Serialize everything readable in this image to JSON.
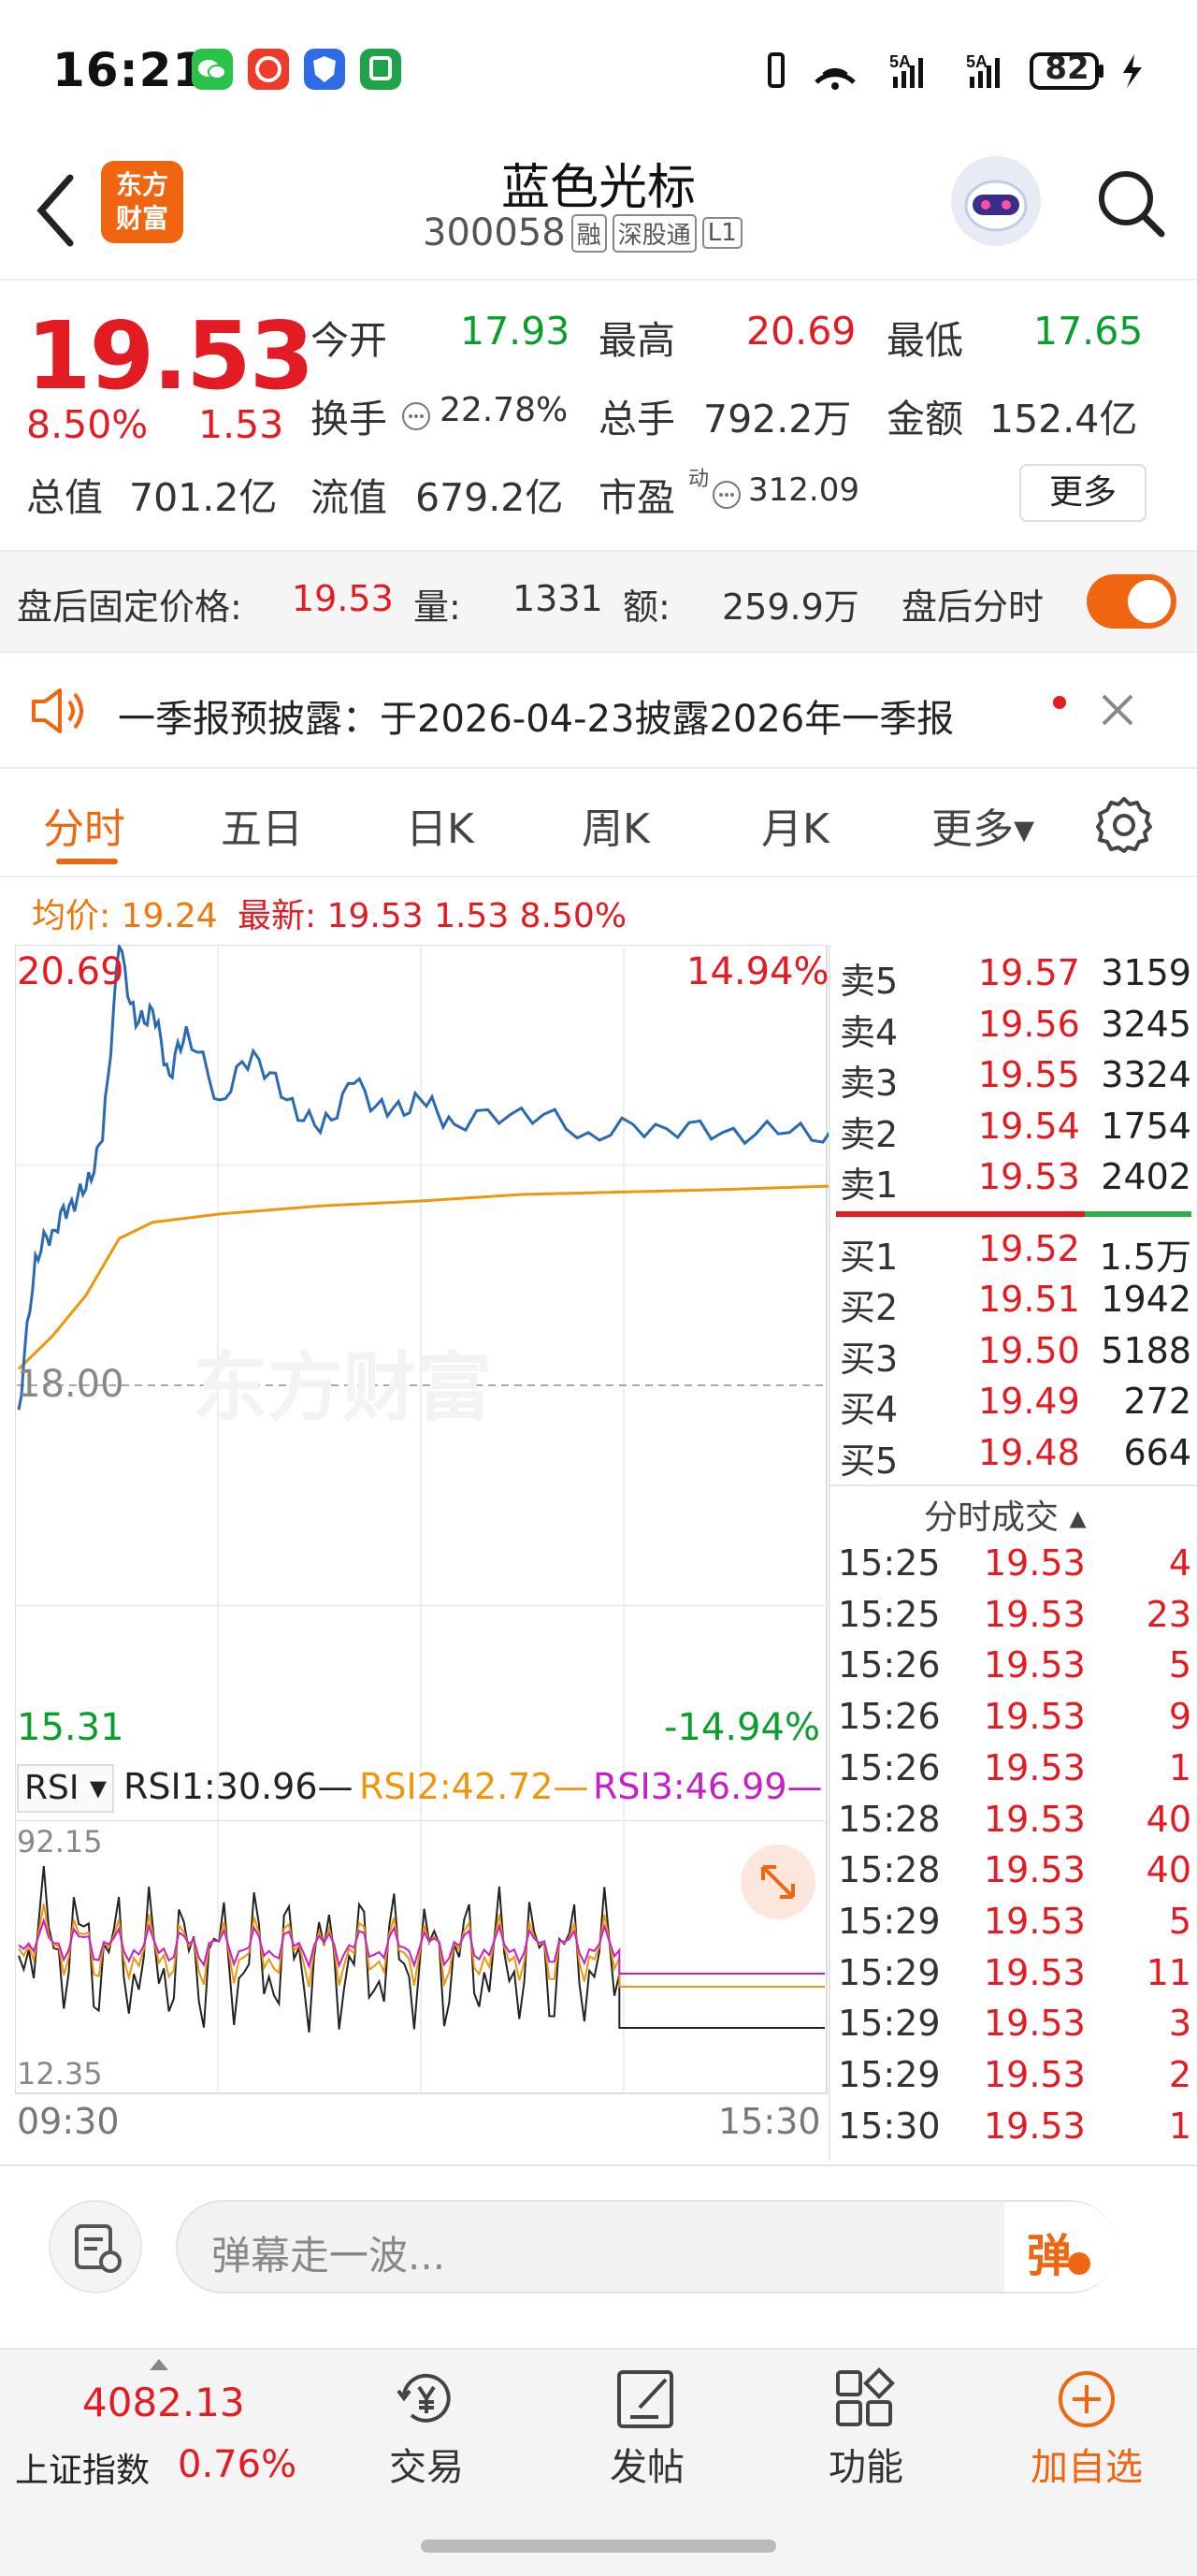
{
  "status_bar": {
    "time": "16:21",
    "battery": "82",
    "signal1": "5A",
    "signal2": "5A"
  },
  "header": {
    "stock_name": "蓝色光标",
    "stock_code": "300058",
    "tags": [
      "融",
      "深股通",
      "L1"
    ],
    "logo_text": "东方\n财富"
  },
  "quote": {
    "price": "19.53",
    "change_pct": "8.50%",
    "change": "1.53",
    "open_label": "今开",
    "open": "17.93",
    "high_label": "最高",
    "high": "20.69",
    "low_label": "最低",
    "low": "17.65",
    "turnover_label": "换手",
    "turnover": "22.78%",
    "volume_label": "总手",
    "volume": "792.2万",
    "amount_label": "金额",
    "amount": "152.4亿",
    "mcap_label": "总值",
    "mcap": "701.2亿",
    "float_label": "流值",
    "float": "679.2亿",
    "pe_label": "市盈",
    "pe_sup": "动",
    "pe": "312.09",
    "more_label": "更多"
  },
  "after_hours": {
    "price_label": "盘后固定价格:",
    "price": "19.53",
    "vol_label": "量:",
    "vol": "1331",
    "amt_label": "额:",
    "amt": "259.9万",
    "timeline_label": "盘后分时",
    "toggle_on": true
  },
  "notice": {
    "text": "一季报预披露：于2026-04-23披露2026年一季报"
  },
  "tabs": [
    {
      "label": "分时",
      "active": true
    },
    {
      "label": "五日"
    },
    {
      "label": "日K"
    },
    {
      "label": "周K"
    },
    {
      "label": "月K"
    },
    {
      "label": "更多▾"
    }
  ],
  "chart_header": {
    "avg_label": "均价: 19.24",
    "latest_label": "最新: 19.53 1.53 8.50%"
  },
  "chart_data": {
    "type": "line",
    "series": [
      {
        "name": "price",
        "color": "#2a6ab3",
        "x": [
          "09:30",
          "09:35",
          "09:40",
          "09:45",
          "09:50",
          "09:55",
          "10:00",
          "10:05",
          "10:10",
          "10:15",
          "10:20",
          "10:30",
          "10:40",
          "10:50",
          "11:00",
          "11:10",
          "11:20",
          "11:30",
          "13:10",
          "13:30",
          "13:50",
          "14:10",
          "14:30",
          "14:50",
          "15:10",
          "15:30"
        ],
        "values": [
          17.85,
          18.8,
          18.95,
          19.1,
          19.2,
          19.5,
          20.69,
          20.2,
          20.3,
          19.9,
          20.2,
          19.75,
          20.05,
          19.75,
          19.55,
          19.85,
          19.65,
          19.75,
          19.6,
          19.7,
          19.55,
          19.6,
          19.55,
          19.55,
          19.53,
          19.53
        ]
      },
      {
        "name": "avg",
        "color": "#f0960a",
        "x": [
          "09:30",
          "09:40",
          "09:50",
          "10:00",
          "10:10",
          "10:30",
          "11:00",
          "11:30",
          "13:30",
          "14:30",
          "15:30"
        ],
        "values": [
          18.1,
          18.3,
          18.55,
          18.9,
          19.0,
          19.05,
          19.1,
          19.13,
          19.17,
          19.2,
          19.24
        ]
      }
    ],
    "ylim": [
      15.31,
      20.69
    ],
    "pre_close": "18.00",
    "y_top_label": "20.69",
    "y_bottom_label": "15.31",
    "pct_top": "14.94%",
    "pct_bottom": "-14.94%",
    "x_labels": [
      "09:30",
      "15:30"
    ],
    "watermark": "东方财富"
  },
  "rsi": {
    "indicator": "RSI ▾",
    "rsi1": "RSI1:30.96—",
    "rsi2": "RSI2:42.72—",
    "rsi3": "RSI3:46.99—",
    "top": "92.15",
    "bottom": "12.35"
  },
  "order_book": {
    "asks": [
      {
        "label": "卖5",
        "price": "19.57",
        "vol": "3159"
      },
      {
        "label": "卖4",
        "price": "19.56",
        "vol": "3245"
      },
      {
        "label": "卖3",
        "price": "19.55",
        "vol": "3324"
      },
      {
        "label": "卖2",
        "price": "19.54",
        "vol": "1754"
      },
      {
        "label": "卖1",
        "price": "19.53",
        "vol": "2402"
      }
    ],
    "bids": [
      {
        "label": "买1",
        "price": "19.52",
        "vol": "1.5万"
      },
      {
        "label": "买2",
        "price": "19.51",
        "vol": "1942"
      },
      {
        "label": "买3",
        "price": "19.50",
        "vol": "5188"
      },
      {
        "label": "买4",
        "price": "19.49",
        "vol": "272"
      },
      {
        "label": "买5",
        "price": "19.48",
        "vol": "664"
      }
    ],
    "trades_title": "分时成交 ▴",
    "trades": [
      {
        "time": "15:25",
        "price": "19.53",
        "vol": "4"
      },
      {
        "time": "15:25",
        "price": "19.53",
        "vol": "23"
      },
      {
        "time": "15:26",
        "price": "19.53",
        "vol": "5"
      },
      {
        "time": "15:26",
        "price": "19.53",
        "vol": "9"
      },
      {
        "time": "15:26",
        "price": "19.53",
        "vol": "1"
      },
      {
        "time": "15:28",
        "price": "19.53",
        "vol": "40"
      },
      {
        "time": "15:28",
        "price": "19.53",
        "vol": "40"
      },
      {
        "time": "15:29",
        "price": "19.53",
        "vol": "5"
      },
      {
        "time": "15:29",
        "price": "19.53",
        "vol": "11"
      },
      {
        "time": "15:29",
        "price": "19.53",
        "vol": "3"
      },
      {
        "time": "15:29",
        "price": "19.53",
        "vol": "2"
      },
      {
        "time": "15:30",
        "price": "19.53",
        "vol": "1"
      }
    ]
  },
  "danmu": {
    "placeholder": "弹幕走一波...",
    "button": "弹"
  },
  "footer": {
    "index_value": "4082.13",
    "index_name": "上证指数",
    "index_change": "0.76%",
    "items": [
      {
        "label": "交易",
        "icon": "yen-icon"
      },
      {
        "label": "发帖",
        "icon": "edit-icon"
      },
      {
        "label": "功能",
        "icon": "grid-icon"
      },
      {
        "label": "加自选",
        "icon": "plus-circle-icon"
      }
    ]
  }
}
